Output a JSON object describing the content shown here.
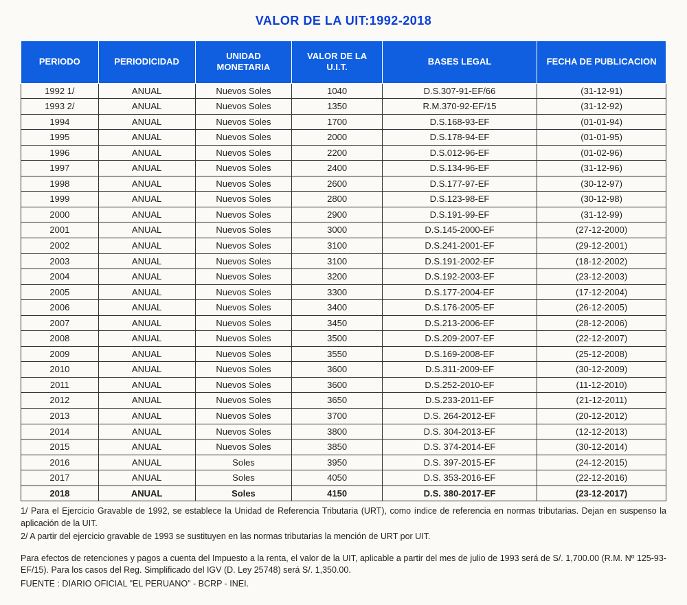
{
  "title": "VALOR DE LA UIT:1992-2018",
  "headers": {
    "periodo": "PERIODO",
    "periodicidad": "PERIODICIDAD",
    "unidad": "UNIDAD MONETARIA",
    "valor": "VALOR DE LA U.I.T.",
    "bases": "BASES LEGAL",
    "fecha": "FECHA DE PUBLICACION"
  },
  "table": {
    "col_widths_pct": [
      12,
      15,
      15,
      14,
      24,
      20
    ],
    "header_bg": "#0f5fe0",
    "header_fg": "#ffffff",
    "border_color": "#333333",
    "body_font_size": 13,
    "header_font_size": 13,
    "title_color": "#0a3fd6"
  },
  "rows": [
    {
      "periodo": "1992   1/",
      "periodicidad": "ANUAL",
      "unidad": "Nuevos Soles",
      "valor": "1040",
      "bases": "D.S.307-91-EF/66",
      "fecha": "(31-12-91)",
      "bold": false
    },
    {
      "periodo": "1993   2/",
      "periodicidad": "ANUAL",
      "unidad": "Nuevos Soles",
      "valor": "1350",
      "bases": "R.M.370-92-EF/15",
      "fecha": "(31-12-92)",
      "bold": false
    },
    {
      "periodo": "1994",
      "periodicidad": "ANUAL",
      "unidad": "Nuevos Soles",
      "valor": "1700",
      "bases": "D.S.168-93-EF",
      "fecha": "(01-01-94)",
      "bold": false
    },
    {
      "periodo": "1995",
      "periodicidad": "ANUAL",
      "unidad": "Nuevos Soles",
      "valor": "2000",
      "bases": "D.S.178-94-EF",
      "fecha": "(01-01-95)",
      "bold": false
    },
    {
      "periodo": "1996",
      "periodicidad": "ANUAL",
      "unidad": "Nuevos Soles",
      "valor": "2200",
      "bases": "D.S.012-96-EF",
      "fecha": "(01-02-96)",
      "bold": false
    },
    {
      "periodo": "1997",
      "periodicidad": "ANUAL",
      "unidad": "Nuevos Soles",
      "valor": "2400",
      "bases": "D.S.134-96-EF",
      "fecha": "(31-12-96)",
      "bold": false
    },
    {
      "periodo": "1998",
      "periodicidad": "ANUAL",
      "unidad": "Nuevos Soles",
      "valor": "2600",
      "bases": "D.S.177-97-EF",
      "fecha": "(30-12-97)",
      "bold": false
    },
    {
      "periodo": "1999",
      "periodicidad": "ANUAL",
      "unidad": "Nuevos Soles",
      "valor": "2800",
      "bases": "D.S.123-98-EF",
      "fecha": "(30-12-98)",
      "bold": false
    },
    {
      "periodo": "2000",
      "periodicidad": "ANUAL",
      "unidad": "Nuevos Soles",
      "valor": "2900",
      "bases": "D.S.191-99-EF",
      "fecha": "(31-12-99)",
      "bold": false
    },
    {
      "periodo": "2001",
      "periodicidad": "ANUAL",
      "unidad": "Nuevos Soles",
      "valor": "3000",
      "bases": "D.S.145-2000-EF",
      "fecha": "(27-12-2000)",
      "bold": false
    },
    {
      "periodo": "2002",
      "periodicidad": "ANUAL",
      "unidad": "Nuevos Soles",
      "valor": "3100",
      "bases": "D.S.241-2001-EF",
      "fecha": "(29-12-2001)",
      "bold": false
    },
    {
      "periodo": "2003",
      "periodicidad": "ANUAL",
      "unidad": "Nuevos Soles",
      "valor": "3100",
      "bases": "D.S.191-2002-EF",
      "fecha": "(18-12-2002)",
      "bold": false
    },
    {
      "periodo": "2004",
      "periodicidad": "ANUAL",
      "unidad": "Nuevos Soles",
      "valor": "3200",
      "bases": "D.S.192-2003-EF",
      "fecha": "(23-12-2003)",
      "bold": false
    },
    {
      "periodo": "2005",
      "periodicidad": "ANUAL",
      "unidad": "Nuevos Soles",
      "valor": "3300",
      "bases": "D.S.177-2004-EF",
      "fecha": "(17-12-2004)",
      "bold": false
    },
    {
      "periodo": "2006",
      "periodicidad": "ANUAL",
      "unidad": "Nuevos Soles",
      "valor": "3400",
      "bases": "D.S.176-2005-EF",
      "fecha": "(26-12-2005)",
      "bold": false
    },
    {
      "periodo": "2007",
      "periodicidad": "ANUAL",
      "unidad": "Nuevos Soles",
      "valor": "3450",
      "bases": "D.S.213-2006-EF",
      "fecha": "(28-12-2006)",
      "bold": false
    },
    {
      "periodo": "2008",
      "periodicidad": "ANUAL",
      "unidad": "Nuevos Soles",
      "valor": "3500",
      "bases": "D.S.209-2007-EF",
      "fecha": "(22-12-2007)",
      "bold": false
    },
    {
      "periodo": "2009",
      "periodicidad": "ANUAL",
      "unidad": "Nuevos Soles",
      "valor": "3550",
      "bases": "D.S.169-2008-EF",
      "fecha": "(25-12-2008)",
      "bold": false
    },
    {
      "periodo": "2010",
      "periodicidad": "ANUAL",
      "unidad": "Nuevos Soles",
      "valor": "3600",
      "bases": "D.S.311-2009-EF",
      "fecha": "(30-12-2009)",
      "bold": false
    },
    {
      "periodo": "2011",
      "periodicidad": "ANUAL",
      "unidad": "Nuevos Soles",
      "valor": "3600",
      "bases": "D.S.252-2010-EF",
      "fecha": "(11-12-2010)",
      "bold": false
    },
    {
      "periodo": "2012",
      "periodicidad": "ANUAL",
      "unidad": "Nuevos Soles",
      "valor": "3650",
      "bases": "D.S.233-2011-EF",
      "fecha": "(21-12-2011)",
      "bold": false
    },
    {
      "periodo": "2013",
      "periodicidad": "ANUAL",
      "unidad": "Nuevos Soles",
      "valor": "3700",
      "bases": "D.S. 264-2012-EF",
      "fecha": "(20-12-2012)",
      "bold": false
    },
    {
      "periodo": "2014",
      "periodicidad": "ANUAL",
      "unidad": "Nuevos Soles",
      "valor": "3800",
      "bases": "D.S. 304-2013-EF",
      "fecha": "(12-12-2013)",
      "bold": false
    },
    {
      "periodo": "2015",
      "periodicidad": "ANUAL",
      "unidad": "Nuevos Soles",
      "valor": "3850",
      "bases": "D.S. 374-2014-EF",
      "fecha": "(30-12-2014)",
      "bold": false
    },
    {
      "periodo": "2016",
      "periodicidad": "ANUAL",
      "unidad": "Soles",
      "valor": "3950",
      "bases": "D.S. 397-2015-EF",
      "fecha": "(24-12-2015)",
      "bold": false
    },
    {
      "periodo": "2017",
      "periodicidad": "ANUAL",
      "unidad": "Soles",
      "valor": "4050",
      "bases": "D.S. 353-2016-EF",
      "fecha": "(22-12-2016)",
      "bold": false
    },
    {
      "periodo": "2018",
      "periodicidad": "ANUAL",
      "unidad": "Soles",
      "valor": "4150",
      "bases": "D.S. 380-2017-EF",
      "fecha": "(23-12-2017)",
      "bold": true
    }
  ],
  "notes": {
    "n1": "1/ Para el Ejercicio Gravable de 1992, se establece la Unidad de Referencia Tributaria (URT), como índice de referencia en normas tributarias. Dejan en suspenso la aplicación de la UIT.",
    "n2": "2/ A partir del ejercicio gravable de 1993 se sustituyen en las normas tributarias la  mención de URT por UIT.",
    "n3": "Para efectos de retenciones y pagos a cuenta del Impuesto a la renta, el valor de la UIT, aplicable a partir del mes de julio de 1993 será de S/. 1,700.00 (R.M. Nº 125-93-EF/15). Para los casos del Reg. Simplificado del IGV (D. Ley 25748) será  S/. 1,350.00.",
    "n4": "FUENTE : DIARIO OFICIAL \"EL PERUANO\" - BCRP - INEI."
  }
}
